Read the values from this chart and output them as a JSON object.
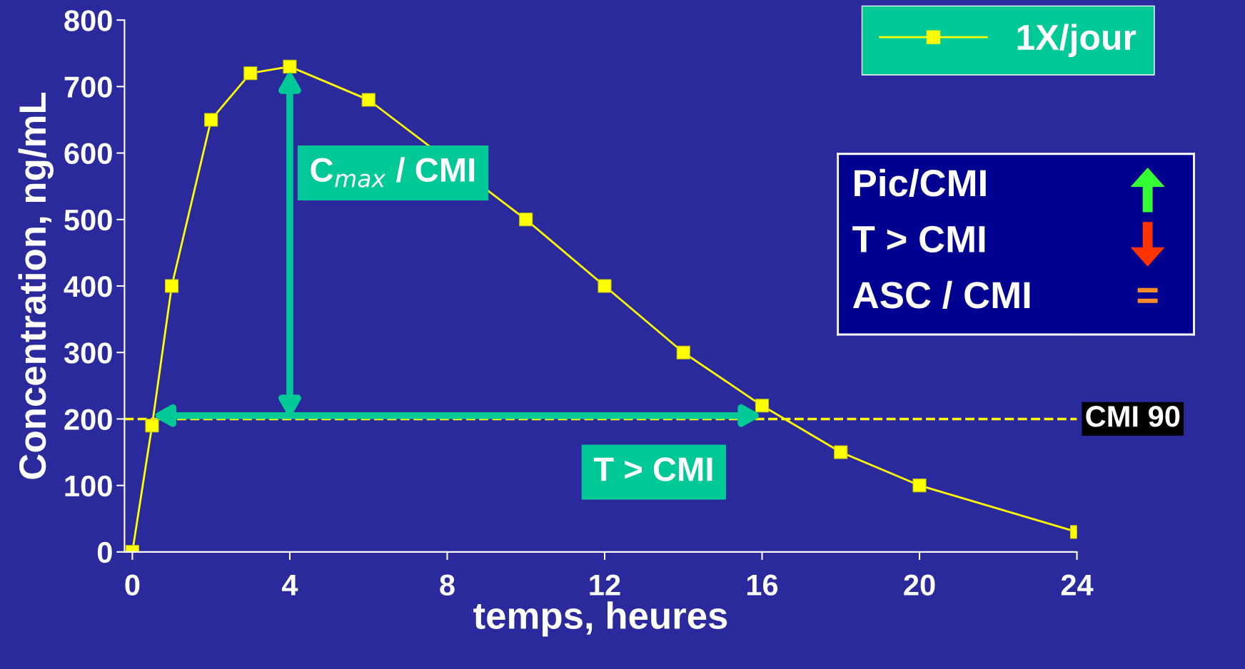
{
  "chart_data": {
    "type": "line",
    "xlabel": "temps, heures",
    "ylabel": "Concentration, ng/mL",
    "x": [
      0,
      0.5,
      1,
      2,
      3,
      4,
      6,
      10,
      12,
      14,
      16,
      18,
      20,
      24
    ],
    "series": [
      {
        "name": "1X/jour",
        "color": "#ffff00",
        "values": [
          0,
          190,
          400,
          650,
          720,
          730,
          680,
          500,
          400,
          300,
          220,
          150,
          100,
          30
        ]
      }
    ],
    "xlim": [
      -0.2,
      24
    ],
    "xticks": [
      0,
      4,
      8,
      12,
      16,
      20,
      24
    ],
    "ylim": [
      0,
      800
    ],
    "yticks": [
      0,
      100,
      200,
      300,
      400,
      500,
      600,
      700,
      800
    ],
    "ref_lines": [
      {
        "axis": "y",
        "value": 200,
        "label": "CMI 90",
        "color": "#ffff00",
        "line_style": "dashed"
      }
    ],
    "annotations": [
      {
        "text": "C$_{max}$ / CMI",
        "x": 4,
        "y": 730
      },
      {
        "text": "T > CMI",
        "x": 16,
        "y": 200
      },
      "Pic/CMI",
      "T > CMI",
      "ASC / CMI",
      "="
    ],
    "marker": "square",
    "line_style": "solid",
    "grid": false,
    "legend": "top right"
  }
}
